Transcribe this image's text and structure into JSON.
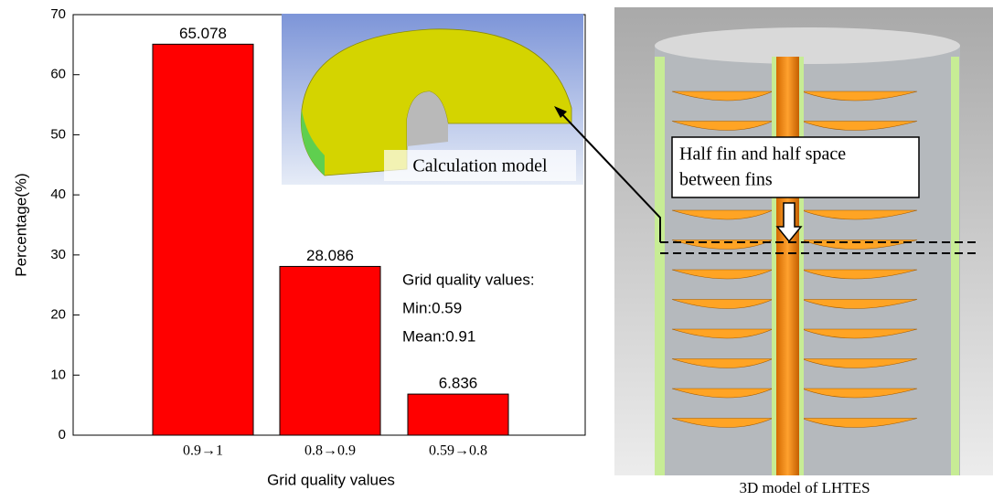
{
  "chart_data": {
    "type": "bar",
    "categories": [
      "0.9→1",
      "0.8→0.9",
      "0.59→0.8"
    ],
    "values": [
      65.078,
      28.086,
      6.836
    ],
    "color": "#ff0000",
    "x_label": "Grid quality values",
    "y_label": "Percentage(%)",
    "ylim": [
      0,
      70
    ],
    "yticks": [
      0,
      10,
      20,
      30,
      40,
      50,
      60,
      70
    ],
    "annotations": [
      "Grid quality values:",
      "Min:0.59",
      "Mean:0.91"
    ],
    "inset_label": "Calculation model",
    "model_callout": [
      "Half fin and half space",
      "between fins"
    ],
    "model_caption": "3D model of LHTES"
  }
}
